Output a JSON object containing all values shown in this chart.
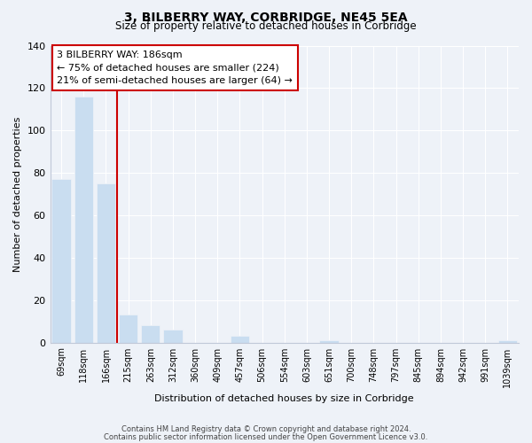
{
  "title": "3, BILBERRY WAY, CORBRIDGE, NE45 5EA",
  "subtitle": "Size of property relative to detached houses in Corbridge",
  "xlabel": "Distribution of detached houses by size in Corbridge",
  "ylabel": "Number of detached properties",
  "categories": [
    "69sqm",
    "118sqm",
    "166sqm",
    "215sqm",
    "263sqm",
    "312sqm",
    "360sqm",
    "409sqm",
    "457sqm",
    "506sqm",
    "554sqm",
    "603sqm",
    "651sqm",
    "700sqm",
    "748sqm",
    "797sqm",
    "845sqm",
    "894sqm",
    "942sqm",
    "991sqm",
    "1039sqm"
  ],
  "values": [
    77,
    116,
    75,
    13,
    8,
    6,
    0,
    0,
    3,
    0,
    0,
    0,
    1,
    0,
    0,
    0,
    0,
    0,
    0,
    0,
    1
  ],
  "bar_color": "#c9ddf0",
  "highlight_color": "#cc0000",
  "highlight_bar_index": 2,
  "ylim": [
    0,
    140
  ],
  "yticks": [
    0,
    20,
    40,
    60,
    80,
    100,
    120,
    140
  ],
  "annotation_title": "3 BILBERRY WAY: 186sqm",
  "annotation_line1": "← 75% of detached houses are smaller (224)",
  "annotation_line2": "21% of semi-detached houses are larger (64) →",
  "footer1": "Contains HM Land Registry data © Crown copyright and database right 2024.",
  "footer2": "Contains public sector information licensed under the Open Government Licence v3.0.",
  "bg_color": "#eef2f8",
  "grid_color": "#ffffff",
  "spine_color": "#c0c8d8"
}
